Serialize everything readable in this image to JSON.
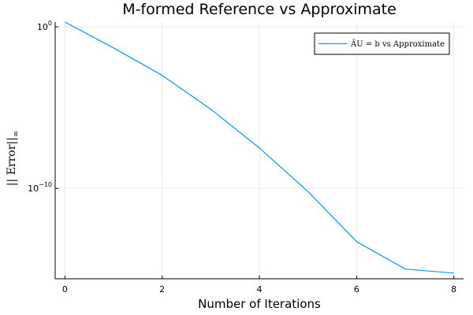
{
  "chart_data": {
    "type": "line",
    "title": "M-formed Reference vs Approximate",
    "xlabel": "Number of Iterations",
    "ylabel": "|| Error||",
    "ylabel_sub": "∞",
    "y_scale": "log10",
    "xlim": [
      -0.2,
      8.2
    ],
    "ylim_log10": [
      -15.6,
      0.3
    ],
    "x_ticks": [
      0,
      2,
      4,
      6,
      8
    ],
    "y_ticks": [
      {
        "exp": 0,
        "base": "10",
        "sup": "0"
      },
      {
        "exp": -10,
        "base": "10",
        "sup": "−10"
      }
    ],
    "grid": true,
    "legend_position": "top-right",
    "series": [
      {
        "name": "ÂU = b vs Approximate",
        "color": "#009AFA",
        "x": [
          0,
          1,
          2,
          3,
          4,
          5,
          6,
          7,
          8
        ],
        "y_log10": [
          0.3,
          -1.3,
          -3.0,
          -5.1,
          -7.5,
          -10.2,
          -13.3,
          -15.0,
          -15.25
        ]
      }
    ]
  }
}
